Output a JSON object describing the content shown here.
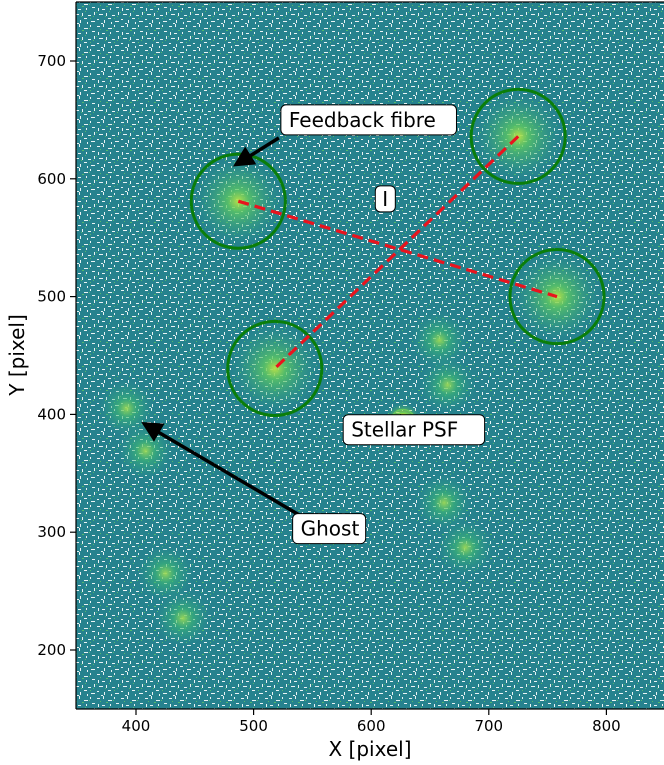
{
  "chart_data": {
    "type": "heatmap",
    "title": "",
    "xlabel": "X [pixel]",
    "ylabel": "Y [pixel]",
    "xlim": [
      350,
      850
    ],
    "ylim": [
      150,
      750
    ],
    "xticks": [
      400,
      500,
      600,
      700,
      800
    ],
    "yticks": [
      200,
      300,
      400,
      500,
      600,
      700
    ],
    "grid": false,
    "colormap": "viridis",
    "feedback_fibres": [
      {
        "x": 487,
        "y": 581,
        "r": 40
      },
      {
        "x": 725,
        "y": 636,
        "r": 40
      },
      {
        "x": 758,
        "y": 500,
        "r": 40
      },
      {
        "x": 518,
        "y": 439,
        "r": 40
      }
    ],
    "cross_lines": [
      {
        "x1": 487,
        "y1": 581,
        "x2": 758,
        "y2": 500
      },
      {
        "x1": 725,
        "y1": 636,
        "x2": 518,
        "y2": 439
      }
    ],
    "stellar_psf": {
      "x": 627,
      "y": 394
    },
    "ghosts": [
      {
        "x": 392,
        "y": 405
      },
      {
        "x": 408,
        "y": 369
      },
      {
        "x": 425,
        "y": 265
      },
      {
        "x": 440,
        "y": 227
      },
      {
        "x": 658,
        "y": 463
      },
      {
        "x": 665,
        "y": 425
      },
      {
        "x": 662,
        "y": 325
      },
      {
        "x": 680,
        "y": 287
      }
    ],
    "annotations": [
      {
        "text": "Feedback fibre",
        "label_x": 530,
        "label_y": 650,
        "arrow_x": 485,
        "arrow_y": 612
      },
      {
        "text": "I",
        "label_x": 612,
        "label_y": 583,
        "arrow_x": null,
        "arrow_y": null
      },
      {
        "text": "Stellar PSF",
        "label_x": 583,
        "label_y": 387,
        "arrow_x": 640,
        "arrow_y": 393
      },
      {
        "text": "Ghost",
        "label_x": 540,
        "label_y": 303,
        "arrow_x": 407,
        "arrow_y": 392
      }
    ],
    "colors": {
      "background": "#1f8a8a",
      "circle": "#0a7e0a",
      "dash": "#e8141e",
      "arrow": "#000000"
    }
  }
}
